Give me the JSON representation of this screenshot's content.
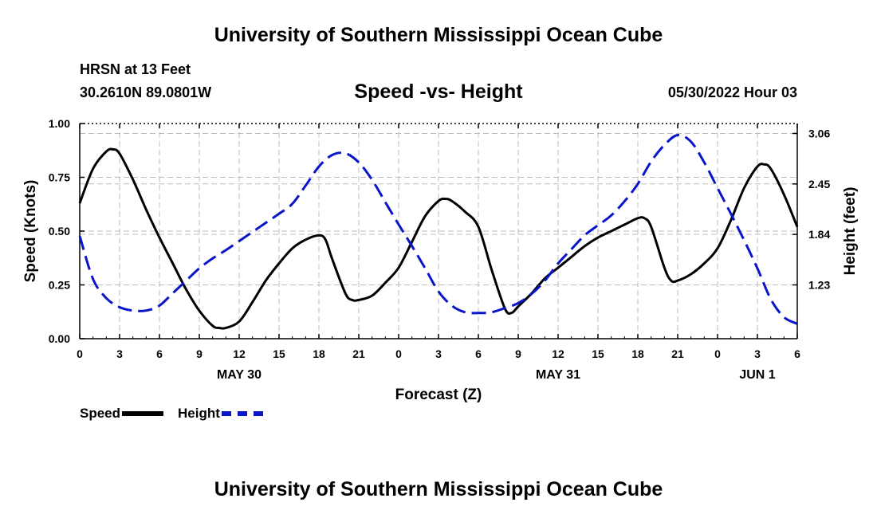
{
  "header": {
    "top_title": "University of Southern Mississippi Ocean Cube",
    "station": "HRSN at 13 Feet",
    "coords": "30.2610N  89.0801W",
    "subtitle": "Speed -vs- Height",
    "datetime": "05/30/2022 Hour 03"
  },
  "footer": {
    "bottom_title": "University of Southern Mississippi Ocean Cube"
  },
  "legend": {
    "speed_label": "Speed",
    "height_label": "Height"
  },
  "chart_data": {
    "type": "line",
    "xlabel": "Forecast (Z)",
    "ylabel": "Speed (Knots)",
    "ylabel_right": "Height (feet)",
    "xlim": [
      0,
      54
    ],
    "ylim": [
      0,
      1.0
    ],
    "ylim_right": [
      0.58,
      3.18
    ],
    "x_tick_values": [
      0,
      3,
      6,
      9,
      12,
      15,
      18,
      21,
      24,
      27,
      30,
      33,
      36,
      39,
      42,
      45,
      48,
      51,
      54
    ],
    "x_tick_labels": [
      "0",
      "3",
      "6",
      "9",
      "12",
      "15",
      "18",
      "21",
      "0",
      "3",
      "6",
      "9",
      "12",
      "15",
      "18",
      "21",
      "0",
      "3",
      "6"
    ],
    "date_labels": [
      {
        "label": "MAY 30",
        "x": 12
      },
      {
        "label": "MAY 31",
        "x": 36
      },
      {
        "label": "JUN 1",
        "x": 51
      }
    ],
    "y_ticks": [
      0.0,
      0.25,
      0.5,
      0.75,
      1.0
    ],
    "y_tick_labels": [
      "0.00",
      "0.25",
      "0.50",
      "0.75",
      "1.00"
    ],
    "y_ticks_right": [
      1.23,
      1.84,
      2.45,
      3.06
    ],
    "y_tick_labels_right": [
      "1.23",
      "1.84",
      "2.45",
      "3.06"
    ],
    "grid": true,
    "colors": {
      "speed": "#000000",
      "height": "#0a14c8",
      "grid": "#bdbdbd"
    },
    "series": [
      {
        "name": "Speed",
        "axis": "left",
        "style": "solid",
        "x": [
          0,
          1,
          2,
          2.5,
          3,
          4,
          5,
          6,
          7,
          8,
          9,
          10,
          10.5,
          11,
          12,
          13,
          14,
          15,
          16,
          17,
          18,
          18.5,
          19,
          20,
          20.5,
          21,
          22,
          23,
          24,
          25,
          26,
          27,
          27.5,
          28,
          29,
          30,
          31,
          32,
          32.5,
          33,
          34,
          35,
          36,
          37,
          38,
          39,
          40,
          41,
          42,
          42.5,
          43,
          44,
          44.5,
          45,
          46,
          47,
          48,
          49,
          50,
          51,
          51.5,
          52,
          53,
          54
        ],
        "values": [
          0.63,
          0.79,
          0.87,
          0.88,
          0.86,
          0.74,
          0.6,
          0.47,
          0.35,
          0.23,
          0.13,
          0.06,
          0.05,
          0.05,
          0.08,
          0.17,
          0.27,
          0.35,
          0.42,
          0.46,
          0.48,
          0.46,
          0.37,
          0.21,
          0.18,
          0.18,
          0.2,
          0.26,
          0.33,
          0.45,
          0.57,
          0.64,
          0.65,
          0.64,
          0.59,
          0.52,
          0.32,
          0.14,
          0.12,
          0.15,
          0.21,
          0.28,
          0.33,
          0.38,
          0.43,
          0.47,
          0.5,
          0.53,
          0.56,
          0.56,
          0.52,
          0.33,
          0.27,
          0.27,
          0.3,
          0.35,
          0.42,
          0.55,
          0.7,
          0.8,
          0.81,
          0.79,
          0.67,
          0.52
        ]
      },
      {
        "name": "Height",
        "axis": "right",
        "style": "dashed",
        "x": [
          0,
          1,
          2,
          3,
          4,
          5,
          6,
          7,
          8,
          9,
          10,
          11,
          12,
          13,
          14,
          15,
          16,
          17,
          18,
          19,
          20,
          21,
          22,
          23,
          24,
          25,
          26,
          27,
          28,
          29,
          30,
          31,
          32,
          33,
          34,
          35,
          36,
          37,
          38,
          39,
          40,
          41,
          42,
          43,
          44,
          45,
          46,
          47,
          48,
          49,
          50,
          51,
          52,
          53,
          54
        ],
        "values": [
          1.82,
          1.3,
          1.07,
          0.96,
          0.92,
          0.92,
          0.98,
          1.13,
          1.28,
          1.43,
          1.55,
          1.65,
          1.76,
          1.87,
          1.98,
          2.09,
          2.21,
          2.43,
          2.66,
          2.8,
          2.82,
          2.71,
          2.5,
          2.23,
          1.96,
          1.7,
          1.43,
          1.15,
          0.98,
          0.9,
          0.89,
          0.9,
          0.95,
          1.01,
          1.12,
          1.28,
          1.49,
          1.66,
          1.83,
          1.95,
          2.07,
          2.24,
          2.45,
          2.72,
          2.92,
          3.04,
          2.96,
          2.71,
          2.4,
          2.09,
          1.77,
          1.43,
          1.06,
          0.84,
          0.76
        ]
      }
    ]
  }
}
